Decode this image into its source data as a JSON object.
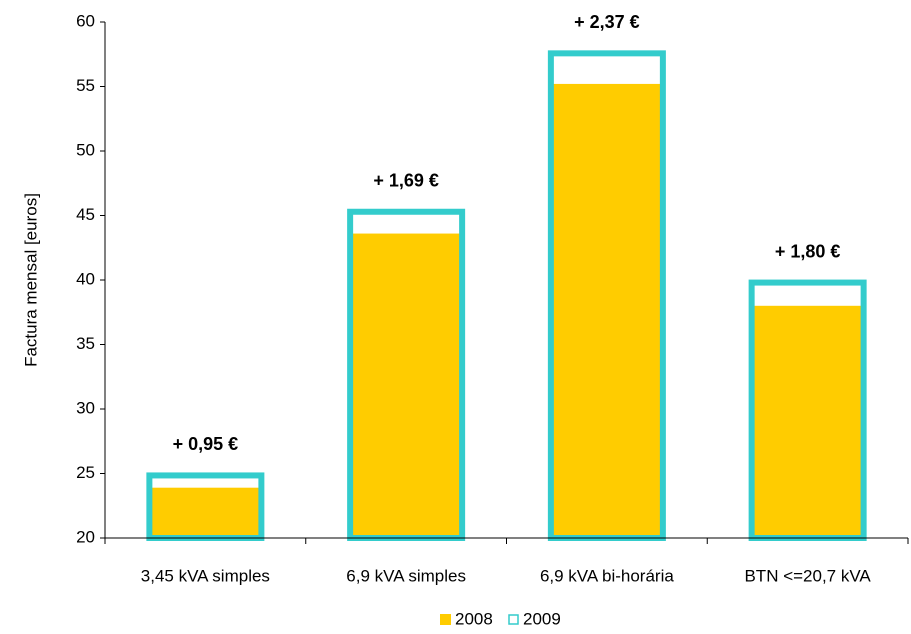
{
  "chart_data": {
    "type": "bar",
    "y_label": "Factura mensal [euros]",
    "categories": [
      "3,45 kVA simples",
      "6,9 kVA simples",
      "6,9 kVA bi-horária",
      "BTN <=20,7 kVA"
    ],
    "series": [
      {
        "name": "2008",
        "color": "#ffcc00",
        "values": [
          23.9,
          43.6,
          55.2,
          38.0
        ]
      },
      {
        "name": "2009",
        "color": "#33cccc",
        "values": [
          24.85,
          45.29,
          57.57,
          39.8
        ]
      }
    ],
    "annotations": [
      "+ 0,95 €",
      "+ 1,69 €",
      "+ 2,37 €",
      "+ 1,80 €"
    ],
    "ylim": [
      20,
      60
    ],
    "yticks": [
      20,
      25,
      30,
      35,
      40,
      45,
      50,
      55,
      60
    ]
  }
}
